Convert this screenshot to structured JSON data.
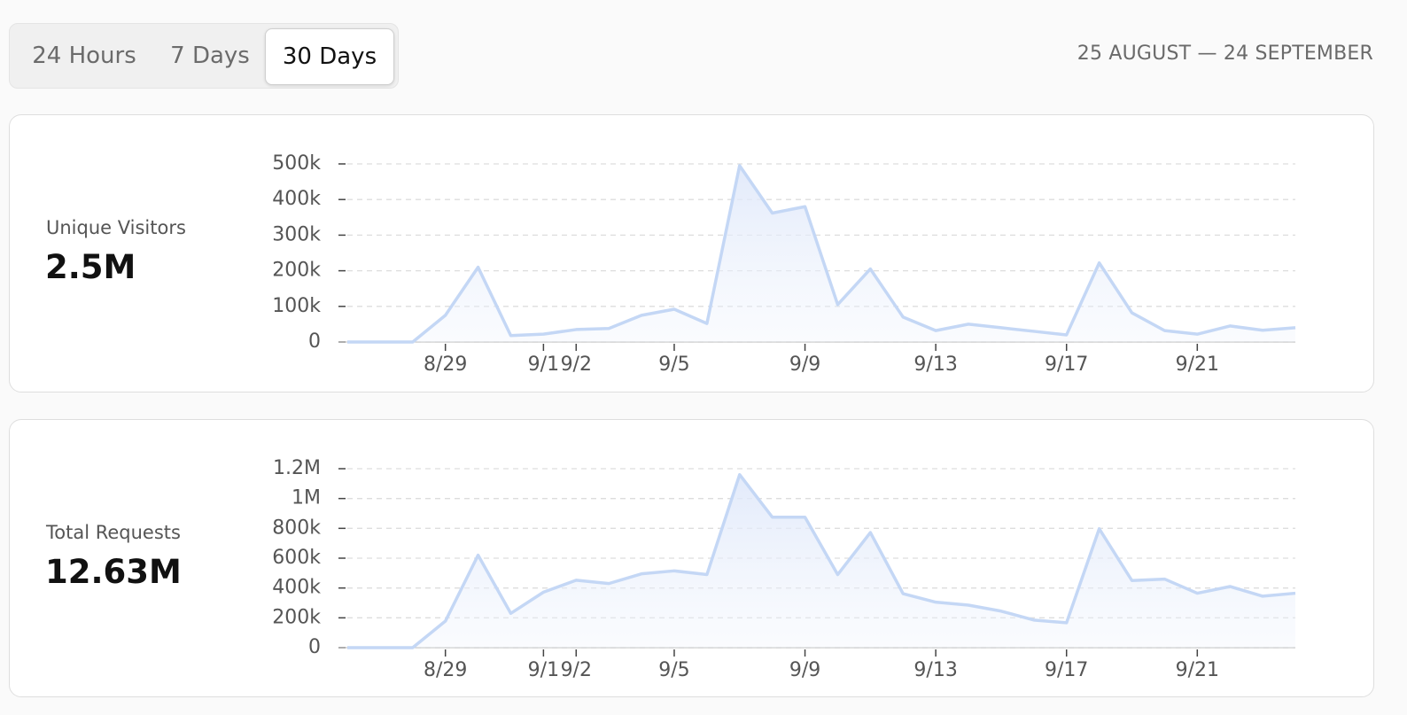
{
  "tabs": [
    "24 Hours",
    "7 Days",
    "30 Days"
  ],
  "active_tab": 2,
  "date_range": "25 AUGUST — 24 SEPTEMBER",
  "chart_data": [
    {
      "type": "area",
      "label": "Unique Visitors",
      "total": "2.5M",
      "categories": [
        null,
        null,
        null,
        "8/29",
        null,
        null,
        "9/1",
        "9/2",
        null,
        null,
        "9/5",
        null,
        null,
        null,
        "9/9",
        null,
        null,
        null,
        "9/13",
        null,
        null,
        null,
        "9/17",
        null,
        null,
        null,
        "9/21",
        null,
        null,
        null
      ],
      "values": [
        0,
        0,
        0,
        75000,
        210000,
        18000,
        22000,
        35000,
        38000,
        75000,
        92000,
        52000,
        495000,
        362000,
        380000,
        105000,
        205000,
        70000,
        32000,
        50000,
        40000,
        30000,
        20000,
        222000,
        82000,
        32000,
        22000,
        45000,
        33000,
        40000
      ],
      "color": "#c4d7f5",
      "ylim": [
        0,
        500000
      ],
      "yticks": [
        0,
        {
          "value": 100000,
          "label": "100k"
        },
        {
          "value": 200000,
          "label": "200k"
        },
        {
          "value": 300000,
          "label": "300k"
        },
        {
          "value": 400000,
          "label": "400k"
        },
        {
          "value": 500000,
          "label": "500k"
        }
      ],
      "grid": true
    },
    {
      "type": "area",
      "label": "Total Requests",
      "total": "12.63M",
      "categories": [
        null,
        null,
        null,
        "8/29",
        null,
        null,
        "9/1",
        "9/2",
        null,
        null,
        "9/5",
        null,
        null,
        null,
        "9/9",
        null,
        null,
        null,
        "9/13",
        null,
        null,
        null,
        "9/17",
        null,
        null,
        null,
        "9/21",
        null,
        null,
        null
      ],
      "values": [
        0,
        0,
        0,
        178000,
        620000,
        230000,
        372000,
        452000,
        430000,
        495000,
        515000,
        490000,
        1160000,
        875000,
        875000,
        490000,
        772000,
        362000,
        305000,
        285000,
        245000,
        185000,
        167000,
        797000,
        450000,
        460000,
        365000,
        410000,
        345000,
        365000
      ],
      "color": "#c4d7f5",
      "ylim": [
        0,
        1200000
      ],
      "yticks": [
        0,
        {
          "value": 200000,
          "label": "200k"
        },
        {
          "value": 400000,
          "label": "400k"
        },
        {
          "value": 600000,
          "label": "600k"
        },
        {
          "value": 800000,
          "label": "800k"
        },
        {
          "value": 1000000,
          "label": "1M"
        },
        {
          "value": 1200000,
          "label": "1.2M"
        }
      ],
      "grid": true
    }
  ]
}
